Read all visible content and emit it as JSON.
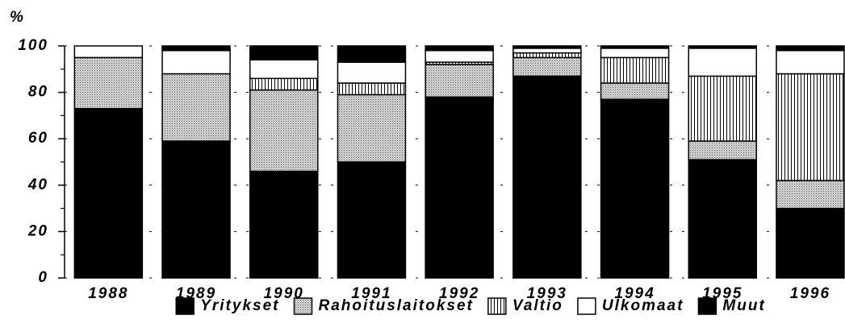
{
  "chart_data": {
    "type": "stacked-bar",
    "y_label": "%",
    "categories": [
      "1988",
      "1989",
      "1990",
      "1991",
      "1992",
      "1993",
      "1994",
      "1995",
      "1996"
    ],
    "series": [
      {
        "name": "Yritykset",
        "color": "#000000",
        "pattern": "solid",
        "values": [
          73,
          59,
          46,
          50,
          78,
          87,
          77,
          51,
          30
        ]
      },
      {
        "name": "Rahoituslaitokset",
        "color": "#b8b8b8",
        "pattern": "dots",
        "values": [
          22,
          29,
          35,
          29,
          14,
          8,
          7,
          8,
          12
        ]
      },
      {
        "name": "Valtio",
        "color": "#ffffff",
        "pattern": "vertical-lines",
        "values": [
          0,
          0,
          5,
          5,
          1,
          2,
          11,
          28,
          46
        ]
      },
      {
        "name": "Ulkomaat",
        "color": "#ffffff",
        "pattern": "solid",
        "values": [
          5,
          10,
          8,
          9,
          5,
          2,
          4,
          12,
          10
        ]
      },
      {
        "name": "Muut",
        "color": "#000000",
        "pattern": "solid",
        "values": [
          0,
          2,
          6,
          7,
          2,
          1,
          1,
          1,
          2
        ]
      }
    ],
    "ylim": [
      0,
      100
    ],
    "yticks": [
      0,
      20,
      40,
      60,
      80,
      100
    ],
    "grid": true
  }
}
